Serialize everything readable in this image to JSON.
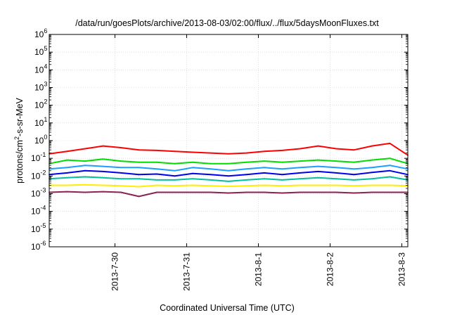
{
  "chart_data": {
    "type": "line",
    "title": "/data/run/goesPlots/archive/2013-08-03/02:00/flux/../flux/5daysMoonFluxes.txt",
    "xlabel": "Coordinated Universal Time (UTC)",
    "ylabel": {
      "prefix": "protons/cm",
      "sup": "2",
      "suffix": "-s-sr-MeV"
    },
    "y_scale": "log",
    "ylim": [
      1e-06,
      1000000.0
    ],
    "y_ticks": [
      {
        "base": "10",
        "exp": "-6",
        "value": 1e-06
      },
      {
        "base": "10",
        "exp": "-5",
        "value": 1e-05
      },
      {
        "base": "10",
        "exp": "-4",
        "value": 0.0001
      },
      {
        "base": "10",
        "exp": "-3",
        "value": 0.001
      },
      {
        "base": "10",
        "exp": "-2",
        "value": 0.01
      },
      {
        "base": "10",
        "exp": "-1",
        "value": 0.1
      },
      {
        "base": "10",
        "exp": "0",
        "value": 1
      },
      {
        "base": "10",
        "exp": "1",
        "value": 10
      },
      {
        "base": "10",
        "exp": "2",
        "value": 100
      },
      {
        "base": "10",
        "exp": "3",
        "value": 1000
      },
      {
        "base": "10",
        "exp": "4",
        "value": 10000
      },
      {
        "base": "10",
        "exp": "5",
        "value": 100000
      },
      {
        "base": "10",
        "exp": "6",
        "value": 1000000
      }
    ],
    "xlim": [
      "2013-07-29 02:00",
      "2013-08-03 02:00"
    ],
    "x_ticks": [
      {
        "label": "2013-7-30",
        "value": "2013-07-30 00:00"
      },
      {
        "label": "2013-7-31",
        "value": "2013-07-31 00:00"
      },
      {
        "label": "2013-8-1",
        "value": "2013-08-01 00:00"
      },
      {
        "label": "2013-8-2",
        "value": "2013-08-02 00:00"
      },
      {
        "label": "2013-8-3",
        "value": "2013-08-03 00:00"
      }
    ],
    "grid": true,
    "legend": "none",
    "x": [
      "2013-07-29 02:00",
      "2013-07-29 08:00",
      "2013-07-29 14:00",
      "2013-07-29 20:00",
      "2013-07-30 02:00",
      "2013-07-30 08:00",
      "2013-07-30 14:00",
      "2013-07-30 20:00",
      "2013-07-31 02:00",
      "2013-07-31 08:00",
      "2013-07-31 14:00",
      "2013-07-31 20:00",
      "2013-08-01 02:00",
      "2013-08-01 08:00",
      "2013-08-01 14:00",
      "2013-08-01 20:00",
      "2013-08-02 02:00",
      "2013-08-02 08:00",
      "2013-08-02 14:00",
      "2013-08-02 20:00",
      "2013-08-03 02:00"
    ],
    "series": [
      {
        "color": "#ff0000",
        "values": [
          0.18,
          0.25,
          0.35,
          0.5,
          0.4,
          0.3,
          0.28,
          0.25,
          0.22,
          0.2,
          0.18,
          0.2,
          0.25,
          0.28,
          0.35,
          0.5,
          0.35,
          0.3,
          0.5,
          0.7,
          0.15
        ]
      },
      {
        "color": "#00dd00",
        "values": [
          0.05,
          0.08,
          0.07,
          0.09,
          0.07,
          0.06,
          0.06,
          0.05,
          0.06,
          0.05,
          0.05,
          0.06,
          0.07,
          0.06,
          0.07,
          0.08,
          0.07,
          0.06,
          0.08,
          0.1,
          0.05
        ]
      },
      {
        "color": "#1a9fff",
        "values": [
          0.025,
          0.03,
          0.04,
          0.035,
          0.03,
          0.03,
          0.025,
          0.02,
          0.03,
          0.025,
          0.02,
          0.025,
          0.03,
          0.025,
          0.03,
          0.035,
          0.03,
          0.025,
          0.03,
          0.04,
          0.025
        ]
      },
      {
        "color": "#0000ee",
        "values": [
          0.012,
          0.015,
          0.02,
          0.018,
          0.015,
          0.012,
          0.013,
          0.01,
          0.014,
          0.012,
          0.01,
          0.012,
          0.015,
          0.012,
          0.015,
          0.018,
          0.015,
          0.012,
          0.016,
          0.02,
          0.012
        ]
      },
      {
        "color": "#00c0a0",
        "values": [
          0.007,
          0.008,
          0.009,
          0.008,
          0.007,
          0.007,
          0.006,
          0.006,
          0.007,
          0.006,
          0.005,
          0.006,
          0.007,
          0.006,
          0.007,
          0.008,
          0.007,
          0.006,
          0.007,
          0.009,
          0.006
        ]
      },
      {
        "color": "#ffee00",
        "values": [
          0.003,
          0.003,
          0.0032,
          0.003,
          0.0028,
          0.0025,
          0.003,
          0.0028,
          0.003,
          0.0028,
          0.0026,
          0.0028,
          0.003,
          0.0028,
          0.003,
          0.003,
          0.003,
          0.0028,
          0.003,
          0.003,
          0.0028
        ]
      },
      {
        "color": "#8b2252",
        "values": [
          0.0012,
          0.0013,
          0.0012,
          0.0013,
          0.0012,
          0.0007,
          0.0012,
          0.0012,
          0.0012,
          0.0012,
          0.0011,
          0.0012,
          0.0012,
          0.0011,
          0.0012,
          0.0012,
          0.0012,
          0.0011,
          0.0012,
          0.0012,
          0.0012
        ]
      }
    ]
  }
}
